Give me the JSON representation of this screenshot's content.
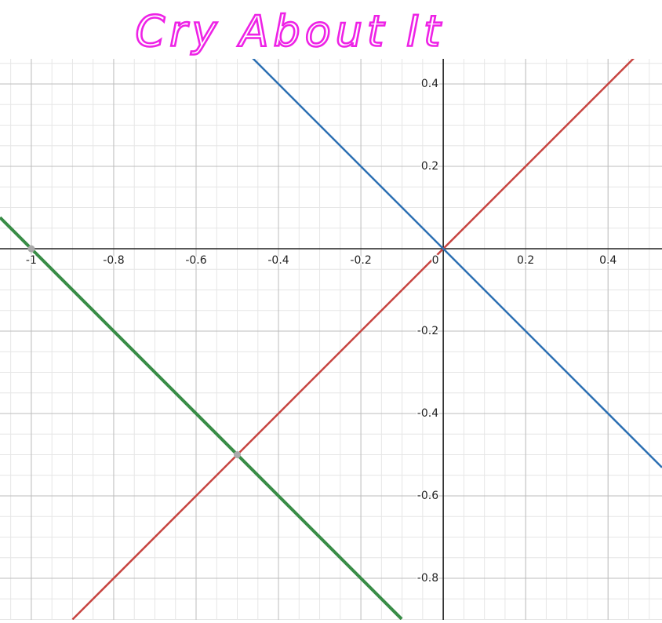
{
  "chart_data": {
    "type": "line",
    "title": "Cry About It",
    "xlim": [
      -1.076,
      0.531
    ],
    "ylim": [
      -0.901,
      0.461
    ],
    "xticks": [
      -1,
      -0.8,
      -0.6,
      -0.4,
      -0.2,
      0,
      0.2,
      0.4
    ],
    "yticks": [
      -0.8,
      -0.6,
      -0.4,
      -0.2,
      0.2,
      0.4
    ],
    "grid": true,
    "series": [
      {
        "color": "#c74440",
        "x": [
          -0.9,
          0.463
        ],
        "values": [
          -0.9,
          0.463
        ]
      },
      {
        "color": "#2d70b3",
        "x": [
          -0.467,
          0.531
        ],
        "values": [
          0.467,
          -0.531
        ]
      },
      {
        "color": "#388c46",
        "x": [
          -1.076,
          -0.101
        ],
        "values": [
          0.076,
          -0.899
        ]
      }
    ],
    "points": {
      "color": "#aaaaaa",
      "x": [
        -1,
        -0.5
      ],
      "values": [
        0,
        -0.5
      ]
    }
  }
}
